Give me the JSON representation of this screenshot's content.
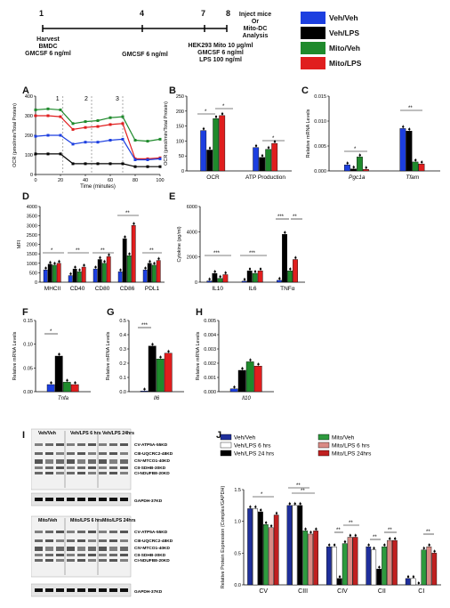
{
  "timeline": {
    "days": [
      "1",
      "4",
      "7",
      "8"
    ],
    "labels": [
      {
        "lines": [
          "Harvest",
          "BMDC",
          "GMCSF 6 ng/ml"
        ]
      },
      {
        "lines": [
          "GMCSF 6 ng/ml"
        ]
      },
      {
        "lines": [
          "HEK293 Mito 10 µg/ml",
          "GMCSF 6 ng/ml",
          "LPS 100 ng/ml"
        ]
      },
      {
        "lines": [
          "Inject mice",
          "Or",
          "Mito-DC",
          "Analysis"
        ]
      }
    ]
  },
  "legend_main": [
    {
      "label": "Veh/Veh",
      "color": "#1c3fe0"
    },
    {
      "label": "Veh/LPS",
      "color": "#000000"
    },
    {
      "label": "Mito/Veh",
      "color": "#1f8a2c"
    },
    {
      "label": "Mito/LPS",
      "color": "#e01e1e"
    }
  ],
  "panels": {
    "A": {
      "letter": "A",
      "ylabel": "OCR (pmol/min/Total Protein)",
      "xlabel": "Time (minutes)",
      "injections": [
        "1",
        "2",
        "3"
      ]
    },
    "B": {
      "letter": "B",
      "ylabel": "OCR (pmol/min/Total Protein)"
    },
    "C": {
      "letter": "C",
      "ylabel": "Relative mRNA Levels"
    },
    "D": {
      "letter": "D",
      "ylabel": "MFI"
    },
    "E": {
      "letter": "E",
      "ylabel": "Cytokine (pg/ml)"
    },
    "F": {
      "letter": "F",
      "ylabel": "Relative mRNA Levels"
    },
    "G": {
      "letter": "G",
      "ylabel": "Relative mRNA Levels"
    },
    "H": {
      "letter": "H",
      "ylabel": "Relative mRNA Levels"
    },
    "I": {
      "letter": "I"
    },
    "J": {
      "letter": "J",
      "ylabel": "Relative Protein Expression (Complex/GAPDH)"
    }
  },
  "blots": {
    "top_headers": [
      "Veh/Veh",
      "Veh/LPS 6 hrs",
      "Veh/LPS 24hrs"
    ],
    "bottom_headers": [
      "Mito/Veh",
      "Mito/LPS 6 hrs",
      "Mito/LPS 24hrs"
    ],
    "bands": [
      "CV-ATP5A-55KD",
      "CIII-UQCRC2-48KD",
      "CIV-MTCO1-40KD",
      "CII-SDHB-30KD",
      "CI-NDUFB8-20KD"
    ],
    "gapdh": "GAPDH-37KD"
  },
  "legend_j": [
    {
      "label": "Veh/Veh",
      "color": "#1f2f9c"
    },
    {
      "label": "Veh/LPS 6 hrs",
      "color": "#ffffff"
    },
    {
      "label": "Veh/LPS 24 hrs",
      "color": "#000000"
    },
    {
      "label": "Mito/Veh",
      "color": "#2e9a3e"
    },
    {
      "label": "Mito/LPS 6 hrs",
      "color": "#d98a84"
    },
    {
      "label": "Mito/LPS 24hrs",
      "color": "#c02020"
    }
  ],
  "chart_data": [
    {
      "type": "line",
      "panel": "A",
      "x": [
        0,
        10,
        20,
        30,
        40,
        50,
        60,
        70,
        80,
        90,
        100
      ],
      "xlim": [
        0,
        100
      ],
      "ylim": [
        0,
        400
      ],
      "yticks": [
        0,
        100,
        200,
        300,
        400
      ],
      "xticks": [
        0,
        20,
        40,
        60,
        80,
        100
      ],
      "series": [
        {
          "name": "Mito/Veh",
          "color": "#1f8a2c",
          "values": [
            330,
            335,
            330,
            260,
            270,
            275,
            290,
            295,
            175,
            170,
            180
          ]
        },
        {
          "name": "Mito/LPS",
          "color": "#e01e1e",
          "values": [
            300,
            300,
            295,
            230,
            240,
            245,
            255,
            260,
            80,
            80,
            85
          ]
        },
        {
          "name": "Veh/Veh",
          "color": "#1c3fe0",
          "values": [
            195,
            200,
            200,
            155,
            165,
            165,
            175,
            180,
            75,
            75,
            80
          ]
        },
        {
          "name": "Veh/LPS",
          "color": "#000000",
          "values": [
            105,
            105,
            105,
            55,
            55,
            55,
            55,
            55,
            40,
            40,
            40
          ]
        }
      ]
    },
    {
      "type": "bar",
      "panel": "B",
      "categories": [
        "OCR",
        "ATP Production"
      ],
      "ylim": [
        0,
        250
      ],
      "yticks": [
        0,
        50,
        100,
        150,
        200,
        250
      ],
      "series": [
        {
          "name": "Veh/Veh",
          "color": "#1c3fe0",
          "values": [
            135,
            78
          ]
        },
        {
          "name": "Veh/LPS",
          "color": "#000000",
          "values": [
            70,
            45
          ]
        },
        {
          "name": "Mito/Veh",
          "color": "#1f8a2c",
          "values": [
            175,
            72
          ]
        },
        {
          "name": "Mito/LPS",
          "color": "#e01e1e",
          "values": [
            185,
            92
          ]
        }
      ]
    },
    {
      "type": "bar",
      "panel": "C",
      "categories": [
        "Pgc1a",
        "Tfam"
      ],
      "ylim": [
        0,
        0.015
      ],
      "yticks": [
        "0.000",
        "0.005",
        "0.010",
        "0.015"
      ],
      "series": [
        {
          "name": "Veh/Veh",
          "color": "#1c3fe0",
          "values": [
            0.0012,
            0.0085
          ]
        },
        {
          "name": "Veh/LPS",
          "color": "#000000",
          "values": [
            0.0004,
            0.008
          ]
        },
        {
          "name": "Mito/Veh",
          "color": "#1f8a2c",
          "values": [
            0.0028,
            0.0018
          ]
        },
        {
          "name": "Mito/LPS",
          "color": "#e01e1e",
          "values": [
            0.0003,
            0.0014
          ]
        }
      ]
    },
    {
      "type": "bar",
      "panel": "D",
      "categories": [
        "MHCII",
        "CD40",
        "CD80",
        "CD86",
        "PDL1"
      ],
      "ylim": [
        0,
        4000
      ],
      "yticks": [
        0,
        500,
        1000,
        1500,
        2000,
        2500,
        3000,
        3500,
        4000
      ],
      "series": [
        {
          "name": "Veh/Veh",
          "color": "#1c3fe0",
          "values": [
            650,
            350,
            700,
            550,
            650
          ]
        },
        {
          "name": "Veh/LPS",
          "color": "#000000",
          "values": [
            950,
            700,
            1200,
            2300,
            1000
          ]
        },
        {
          "name": "Mito/Veh",
          "color": "#1f8a2c",
          "values": [
            900,
            550,
            1000,
            1400,
            900
          ]
        },
        {
          "name": "Mito/LPS",
          "color": "#e01e1e",
          "values": [
            1000,
            800,
            1350,
            3000,
            1150
          ]
        }
      ]
    },
    {
      "type": "bar",
      "panel": "E",
      "categories": [
        "IL10",
        "IL6",
        "TNFα"
      ],
      "ylim": [
        0,
        6000
      ],
      "yticks": [
        0,
        2000,
        4000,
        6000
      ],
      "series": [
        {
          "name": "Veh/Veh",
          "color": "#1c3fe0",
          "values": [
            100,
            80,
            150
          ]
        },
        {
          "name": "Veh/LPS",
          "color": "#000000",
          "values": [
            700,
            900,
            3800
          ]
        },
        {
          "name": "Mito/Veh",
          "color": "#1f8a2c",
          "values": [
            300,
            700,
            900
          ]
        },
        {
          "name": "Mito/LPS",
          "color": "#e01e1e",
          "values": [
            600,
            900,
            1800
          ]
        }
      ]
    },
    {
      "type": "bar",
      "panel": "F",
      "categories": [
        "Tnfa"
      ],
      "ylim": [
        0,
        0.15
      ],
      "yticks": [
        "0.00",
        "0.05",
        "0.10",
        "0.15"
      ],
      "series": [
        {
          "name": "Veh/Veh",
          "color": "#1c3fe0",
          "values": [
            0.015
          ]
        },
        {
          "name": "Veh/LPS",
          "color": "#000000",
          "values": [
            0.075
          ]
        },
        {
          "name": "Mito/Veh",
          "color": "#1f8a2c",
          "values": [
            0.02
          ]
        },
        {
          "name": "Mito/LPS",
          "color": "#e01e1e",
          "values": [
            0.015
          ]
        }
      ]
    },
    {
      "type": "bar",
      "panel": "G",
      "categories": [
        "Il6"
      ],
      "ylim": [
        0,
        0.5
      ],
      "yticks": [
        "0.0",
        "0.1",
        "0.2",
        "0.3",
        "0.4",
        "0.5"
      ],
      "series": [
        {
          "name": "Veh/Veh",
          "color": "#1c3fe0",
          "values": [
            0.005
          ]
        },
        {
          "name": "Veh/LPS",
          "color": "#000000",
          "values": [
            0.32
          ]
        },
        {
          "name": "Mito/Veh",
          "color": "#1f8a2c",
          "values": [
            0.23
          ]
        },
        {
          "name": "Mito/LPS",
          "color": "#e01e1e",
          "values": [
            0.27
          ]
        }
      ]
    },
    {
      "type": "bar",
      "panel": "H",
      "categories": [
        "Il10"
      ],
      "ylim": [
        0,
        0.005
      ],
      "yticks": [
        "0.000",
        "0.001",
        "0.002",
        "0.003",
        "0.004",
        "0.005"
      ],
      "series": [
        {
          "name": "Veh/Veh",
          "color": "#1c3fe0",
          "values": [
            0.0002
          ]
        },
        {
          "name": "Veh/LPS",
          "color": "#000000",
          "values": [
            0.0015
          ]
        },
        {
          "name": "Mito/Veh",
          "color": "#1f8a2c",
          "values": [
            0.0021
          ]
        },
        {
          "name": "Mito/LPS",
          "color": "#e01e1e",
          "values": [
            0.0018
          ]
        }
      ]
    },
    {
      "type": "bar",
      "panel": "J",
      "categories": [
        "CV",
        "CIII",
        "CIV",
        "CII",
        "CI"
      ],
      "ylim": [
        0,
        1.5
      ],
      "yticks": [
        "0.0",
        "0.5",
        "1.0",
        "1.5"
      ],
      "series": [
        {
          "name": "Veh/Veh",
          "color": "#1f2f9c",
          "values": [
            1.2,
            1.25,
            0.6,
            0.6,
            0.1
          ]
        },
        {
          "name": "Veh/LPS 6 hrs",
          "color": "#ffffff",
          "values": [
            1.2,
            1.25,
            0.6,
            0.55,
            0.1
          ]
        },
        {
          "name": "Veh/LPS 24 hrs",
          "color": "#000000",
          "values": [
            1.15,
            1.25,
            0.1,
            0.25,
            0.0
          ]
        },
        {
          "name": "Mito/Veh",
          "color": "#2e9a3e",
          "values": [
            0.95,
            0.85,
            0.65,
            0.6,
            0.55
          ]
        },
        {
          "name": "Mito/LPS 6 hrs",
          "color": "#d98a84",
          "values": [
            0.9,
            0.8,
            0.75,
            0.7,
            0.6
          ]
        },
        {
          "name": "Mito/LPS 24hrs",
          "color": "#c02020",
          "values": [
            1.1,
            0.85,
            0.75,
            0.7,
            0.5
          ]
        }
      ]
    }
  ]
}
